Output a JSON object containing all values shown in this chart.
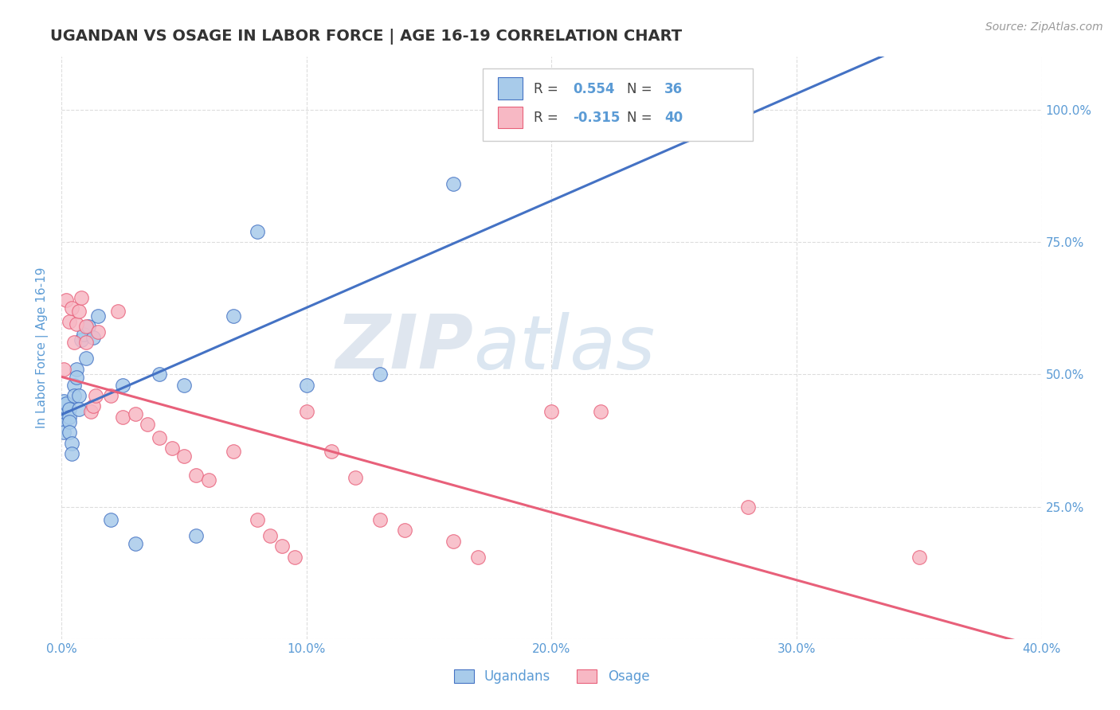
{
  "title": "UGANDAN VS OSAGE IN LABOR FORCE | AGE 16-19 CORRELATION CHART",
  "source": "Source: ZipAtlas.com",
  "ylabel": "In Labor Force | Age 16-19",
  "xlim": [
    0.0,
    0.4
  ],
  "ylim": [
    0.0,
    1.1
  ],
  "x_ticks": [
    0.0,
    0.1,
    0.2,
    0.3,
    0.4
  ],
  "x_tick_labels": [
    "0.0%",
    "10.0%",
    "20.0%",
    "30.0%",
    "40.0%"
  ],
  "y_ticks": [
    0.0,
    0.25,
    0.5,
    0.75,
    1.0
  ],
  "y_tick_labels": [
    "",
    "25.0%",
    "50.0%",
    "75.0%",
    "100.0%"
  ],
  "ugandan_color": "#A8CBEA",
  "osage_color": "#F7B8C4",
  "trend_ugandan_color": "#4472C4",
  "trend_osage_color": "#E8607A",
  "R_ugandan": 0.554,
  "N_ugandan": 36,
  "R_osage": -0.315,
  "N_osage": 40,
  "ugandan_x": [
    0.001,
    0.001,
    0.001,
    0.001,
    0.001,
    0.002,
    0.003,
    0.003,
    0.003,
    0.003,
    0.004,
    0.004,
    0.005,
    0.005,
    0.006,
    0.006,
    0.007,
    0.007,
    0.008,
    0.009,
    0.01,
    0.011,
    0.013,
    0.015,
    0.02,
    0.025,
    0.03,
    0.04,
    0.05,
    0.055,
    0.07,
    0.08,
    0.1,
    0.13,
    0.16,
    0.22
  ],
  "ugandan_y": [
    0.415,
    0.43,
    0.44,
    0.45,
    0.39,
    0.445,
    0.435,
    0.42,
    0.41,
    0.39,
    0.37,
    0.35,
    0.48,
    0.46,
    0.51,
    0.495,
    0.46,
    0.435,
    0.565,
    0.575,
    0.53,
    0.59,
    0.57,
    0.61,
    0.225,
    0.48,
    0.18,
    0.5,
    0.48,
    0.195,
    0.61,
    0.77,
    0.48,
    0.5,
    0.86,
    1.0
  ],
  "osage_x": [
    0.001,
    0.002,
    0.003,
    0.004,
    0.005,
    0.006,
    0.007,
    0.008,
    0.01,
    0.01,
    0.012,
    0.013,
    0.014,
    0.015,
    0.02,
    0.023,
    0.025,
    0.03,
    0.035,
    0.04,
    0.045,
    0.05,
    0.055,
    0.06,
    0.07,
    0.08,
    0.085,
    0.09,
    0.095,
    0.1,
    0.11,
    0.12,
    0.13,
    0.14,
    0.16,
    0.17,
    0.2,
    0.22,
    0.28,
    0.35
  ],
  "osage_y": [
    0.51,
    0.64,
    0.6,
    0.625,
    0.56,
    0.595,
    0.62,
    0.645,
    0.56,
    0.59,
    0.43,
    0.44,
    0.46,
    0.58,
    0.46,
    0.62,
    0.42,
    0.425,
    0.405,
    0.38,
    0.36,
    0.345,
    0.31,
    0.3,
    0.355,
    0.225,
    0.195,
    0.175,
    0.155,
    0.43,
    0.355,
    0.305,
    0.225,
    0.205,
    0.185,
    0.155,
    0.43,
    0.43,
    0.25,
    0.155
  ],
  "watermark_zip": "ZIP",
  "watermark_atlas": "atlas",
  "background_color": "#FFFFFF",
  "grid_color": "#DDDDDD",
  "title_color": "#333333",
  "axis_color": "#5B9BD5",
  "right_label_color": "#5B9BD5",
  "legend_border_color": "#CCCCCC",
  "legend_label_color": "#444444",
  "legend_value_color": "#5B9BD5",
  "source_color": "#999999",
  "bottom_legend_labels": [
    "Ugandans",
    "Osage"
  ]
}
